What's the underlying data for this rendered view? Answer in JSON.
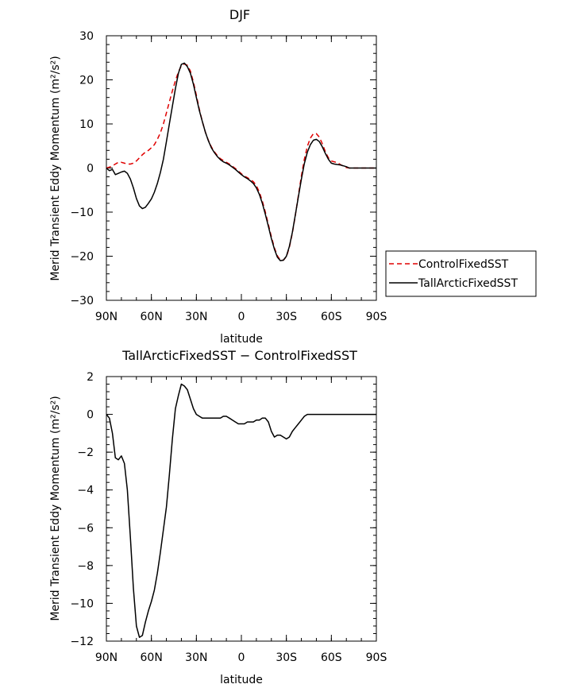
{
  "chart_data": [
    {
      "type": "line",
      "title": "DJF",
      "xlabel": "latitude",
      "ylabel": "Merid Transient Eddy Momentum (m²/s²)",
      "x_ticks": [
        "90N",
        "60N",
        "30N",
        "0",
        "30S",
        "60S",
        "90S"
      ],
      "xlim": [
        90,
        -90
      ],
      "ylim": [
        -30,
        30
      ],
      "y_ticks": [
        "−30",
        "−20",
        "−10",
        "0",
        "10",
        "20",
        "30"
      ],
      "y_tick_values": [
        -30,
        -20,
        -10,
        0,
        10,
        20,
        30
      ],
      "legend_position": "right",
      "grid": false,
      "series": [
        {
          "name": "ControlFixedSST",
          "color": "#e00000",
          "style": "dashed",
          "x": [
            90,
            88,
            86,
            84,
            82,
            80,
            78,
            76,
            74,
            72,
            70,
            68,
            66,
            64,
            62,
            60,
            58,
            56,
            54,
            52,
            50,
            48,
            46,
            44,
            42,
            40,
            38,
            36,
            34,
            32,
            30,
            28,
            26,
            24,
            22,
            20,
            18,
            16,
            14,
            12,
            10,
            8,
            6,
            4,
            2,
            0,
            -2,
            -4,
            -6,
            -8,
            -10,
            -12,
            -14,
            -16,
            -18,
            -20,
            -22,
            -24,
            -26,
            -28,
            -30,
            -32,
            -34,
            -36,
            -38,
            -40,
            -42,
            -44,
            -46,
            -48,
            -50,
            -52,
            -54,
            -56,
            -58,
            -60,
            -62,
            -64,
            -66,
            -68,
            -70,
            -72,
            -74,
            -76,
            -78,
            -80,
            -82,
            -84,
            -86,
            -88,
            -90
          ],
          "y": [
            0,
            0.2,
            0.5,
            0.9,
            1.3,
            1.3,
            1.1,
            0.9,
            0.9,
            1.1,
            1.6,
            2.3,
            3.0,
            3.6,
            4.0,
            4.6,
            5.3,
            6.5,
            8.0,
            10.0,
            12.5,
            15.0,
            17.5,
            19.8,
            21.8,
            23.2,
            23.6,
            23.3,
            22.0,
            19.5,
            16.5,
            13.3,
            10.5,
            8.1,
            6.3,
            4.8,
            3.7,
            2.8,
            2.1,
            1.7,
            1.3,
            0.9,
            0.4,
            -0.1,
            -0.7,
            -1.3,
            -1.8,
            -2.2,
            -2.6,
            -3.1,
            -4.0,
            -5.5,
            -7.5,
            -10.0,
            -12.8,
            -15.6,
            -18.1,
            -19.9,
            -20.9,
            -20.9,
            -20.1,
            -18.0,
            -14.8,
            -10.7,
            -6.2,
            -1.8,
            2.0,
            4.9,
            6.8,
            7.8,
            7.8,
            7.0,
            5.5,
            3.7,
            2.3,
            1.6,
            1.4,
            1.2,
            0.8,
            0.4,
            0.1,
            0.0,
            0.0,
            0.0,
            0.0,
            0.0,
            0.0,
            0.0,
            0.0,
            0.0,
            0.0
          ]
        },
        {
          "name": "TallArcticFixedSST",
          "color": "#000000",
          "style": "solid",
          "x": [
            90,
            88,
            86,
            84,
            82,
            80,
            78,
            76,
            74,
            72,
            70,
            68,
            66,
            64,
            62,
            60,
            58,
            56,
            54,
            52,
            50,
            48,
            46,
            44,
            42,
            40,
            38,
            36,
            34,
            32,
            30,
            28,
            26,
            24,
            22,
            20,
            18,
            16,
            14,
            12,
            10,
            8,
            6,
            4,
            2,
            0,
            -2,
            -4,
            -6,
            -8,
            -10,
            -12,
            -14,
            -16,
            -18,
            -20,
            -22,
            -24,
            -26,
            -28,
            -30,
            -32,
            -34,
            -36,
            -38,
            -40,
            -42,
            -44,
            -46,
            -48,
            -50,
            -52,
            -54,
            -56,
            -58,
            -60,
            -62,
            -64,
            -66,
            -68,
            -70,
            -72,
            -74,
            -76,
            -78,
            -80,
            -82,
            -84,
            -86,
            -88,
            -90
          ],
          "y": [
            0,
            -0.6,
            -0.3,
            -1.5,
            -1.2,
            -0.9,
            -0.7,
            -1.2,
            -2.5,
            -4.5,
            -6.9,
            -8.6,
            -9.2,
            -8.9,
            -8.0,
            -7.0,
            -5.5,
            -3.5,
            -1.0,
            2.0,
            6.0,
            10.0,
            14.0,
            18.0,
            21.5,
            23.5,
            23.8,
            23.0,
            21.5,
            19.0,
            16.0,
            13.0,
            10.5,
            8.1,
            6.2,
            4.6,
            3.5,
            2.6,
            1.9,
            1.4,
            1.1,
            0.7,
            0.2,
            -0.3,
            -0.9,
            -1.5,
            -2.0,
            -2.4,
            -2.9,
            -3.5,
            -4.5,
            -6.0,
            -8.0,
            -10.5,
            -13.2,
            -16.0,
            -18.4,
            -20.2,
            -21.0,
            -20.9,
            -20.0,
            -17.8,
            -14.6,
            -10.6,
            -6.5,
            -2.5,
            1.0,
            3.6,
            5.3,
            6.3,
            6.5,
            6.0,
            4.8,
            3.3,
            2.0,
            1.1,
            0.9,
            0.8,
            0.7,
            0.5,
            0.3,
            0.0,
            0.0,
            0.0,
            0.0,
            0.0,
            0.0,
            0.0,
            0.0,
            0.0,
            0.0
          ]
        }
      ]
    },
    {
      "type": "line",
      "title": "TallArcticFixedSST − ControlFixedSST",
      "xlabel": "latitude",
      "ylabel": "Merid Transient Eddy Momentum (m²/s²)",
      "x_ticks": [
        "90N",
        "60N",
        "30N",
        "0",
        "30S",
        "60S",
        "90S"
      ],
      "xlim": [
        90,
        -90
      ],
      "ylim": [
        -12,
        2
      ],
      "y_ticks": [
        "−12",
        "−10",
        "−8",
        "−6",
        "−4",
        "−2",
        "0",
        "2"
      ],
      "y_tick_values": [
        -12,
        -10,
        -8,
        -6,
        -4,
        -2,
        0,
        2
      ],
      "grid": false,
      "series": [
        {
          "color": "#000000",
          "style": "solid",
          "x": [
            90,
            88,
            86,
            84,
            82,
            80,
            78,
            76,
            74,
            72,
            70,
            68,
            66,
            64,
            62,
            60,
            58,
            56,
            54,
            52,
            50,
            48,
            46,
            44,
            42,
            40,
            38,
            36,
            34,
            32,
            30,
            28,
            26,
            24,
            22,
            20,
            18,
            16,
            14,
            12,
            10,
            8,
            6,
            4,
            2,
            0,
            -2,
            -4,
            -6,
            -8,
            -10,
            -12,
            -14,
            -16,
            -18,
            -20,
            -22,
            -24,
            -26,
            -28,
            -30,
            -32,
            -34,
            -36,
            -38,
            -40,
            -42,
            -44,
            -46,
            -48,
            -50,
            -52,
            -54,
            -56,
            -58,
            -60,
            -62,
            -64,
            -66,
            -68,
            -70,
            -72,
            -74,
            -76,
            -78,
            -80,
            -82,
            -84,
            -86,
            -88,
            -90
          ],
          "y": [
            0,
            -0.2,
            -1.0,
            -2.3,
            -2.4,
            -2.2,
            -2.6,
            -4.0,
            -6.5,
            -9.2,
            -11.2,
            -11.8,
            -11.7,
            -11.0,
            -10.4,
            -9.9,
            -9.3,
            -8.4,
            -7.3,
            -6.1,
            -4.9,
            -3.2,
            -1.3,
            0.3,
            1.0,
            1.6,
            1.5,
            1.3,
            0.8,
            0.3,
            0.0,
            -0.1,
            -0.2,
            -0.2,
            -0.2,
            -0.2,
            -0.2,
            -0.2,
            -0.2,
            -0.1,
            -0.1,
            -0.2,
            -0.3,
            -0.4,
            -0.5,
            -0.5,
            -0.5,
            -0.4,
            -0.4,
            -0.4,
            -0.3,
            -0.3,
            -0.2,
            -0.2,
            -0.4,
            -0.9,
            -1.2,
            -1.1,
            -1.1,
            -1.2,
            -1.3,
            -1.2,
            -0.9,
            -0.7,
            -0.5,
            -0.3,
            -0.1,
            0.0,
            0.0,
            0.0,
            0.0,
            0.0,
            0.0,
            0.0,
            0.0,
            0.0,
            0.0,
            0.0,
            0.0,
            0.0,
            0.0,
            0.0,
            0.0,
            0.0,
            0.0,
            0.0,
            0.0,
            0.0,
            0.0,
            0.0,
            0.0
          ]
        }
      ]
    }
  ]
}
